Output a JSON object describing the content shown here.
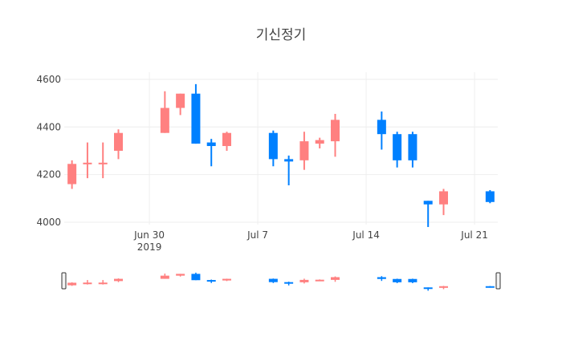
{
  "chart_data": {
    "type": "candlestick",
    "title": "기신정기",
    "xlabel": "",
    "ylabel": "",
    "ylim": [
      3990,
      4630
    ],
    "grid": true,
    "legend": "none",
    "colors": {
      "increasing": "#ff8080",
      "decreasing": "#0080ff",
      "grid": "#eeeeee"
    },
    "y_ticks": [
      "4000",
      "4200",
      "4400",
      "4600"
    ],
    "x_ticks": [
      {
        "date": "2019-06-30",
        "label": "Jun 30",
        "sublabel": "2019"
      },
      {
        "date": "2019-07-07",
        "label": "Jul 7",
        "sublabel": ""
      },
      {
        "date": "2019-07-14",
        "label": "Jul 14",
        "sublabel": ""
      },
      {
        "date": "2019-07-21",
        "label": "Jul 21",
        "sublabel": ""
      }
    ],
    "x_range": [
      "2019-06-24T12:00",
      "2019-07-22T12:00"
    ],
    "candles": [
      {
        "date": "2019-06-25",
        "open": 4160,
        "high": 4260,
        "low": 4140,
        "close": 4245
      },
      {
        "date": "2019-06-26",
        "open": 4245,
        "high": 4335,
        "low": 4185,
        "close": 4250
      },
      {
        "date": "2019-06-27",
        "open": 4245,
        "high": 4335,
        "low": 4185,
        "close": 4250
      },
      {
        "date": "2019-06-28",
        "open": 4300,
        "high": 4390,
        "low": 4265,
        "close": 4375
      },
      {
        "date": "2019-07-01",
        "open": 4375,
        "high": 4550,
        "low": 4375,
        "close": 4480
      },
      {
        "date": "2019-07-02",
        "open": 4480,
        "high": 4540,
        "low": 4450,
        "close": 4540
      },
      {
        "date": "2019-07-03",
        "open": 4540,
        "high": 4580,
        "low": 4330,
        "close": 4330
      },
      {
        "date": "2019-07-04",
        "open": 4335,
        "high": 4350,
        "low": 4235,
        "close": 4320
      },
      {
        "date": "2019-07-05",
        "open": 4320,
        "high": 4380,
        "low": 4300,
        "close": 4375
      },
      {
        "date": "2019-07-08",
        "open": 4375,
        "high": 4385,
        "low": 4235,
        "close": 4265
      },
      {
        "date": "2019-07-09",
        "open": 4265,
        "high": 4280,
        "low": 4155,
        "close": 4255
      },
      {
        "date": "2019-07-10",
        "open": 4260,
        "high": 4380,
        "low": 4220,
        "close": 4340
      },
      {
        "date": "2019-07-11",
        "open": 4330,
        "high": 4355,
        "low": 4310,
        "close": 4345
      },
      {
        "date": "2019-07-12",
        "open": 4340,
        "high": 4455,
        "low": 4275,
        "close": 4430
      },
      {
        "date": "2019-07-15",
        "open": 4430,
        "high": 4465,
        "low": 4305,
        "close": 4370
      },
      {
        "date": "2019-07-16",
        "open": 4370,
        "high": 4380,
        "low": 4230,
        "close": 4260
      },
      {
        "date": "2019-07-17",
        "open": 4370,
        "high": 4380,
        "low": 4230,
        "close": 4260
      },
      {
        "date": "2019-07-18",
        "open": 4090,
        "high": 4090,
        "low": 3980,
        "close": 4075
      },
      {
        "date": "2019-07-19",
        "open": 4075,
        "high": 4140,
        "low": 4030,
        "close": 4130
      },
      {
        "date": "2019-07-22",
        "open": 4130,
        "high": 4135,
        "low": 4080,
        "close": 4085
      }
    ]
  }
}
